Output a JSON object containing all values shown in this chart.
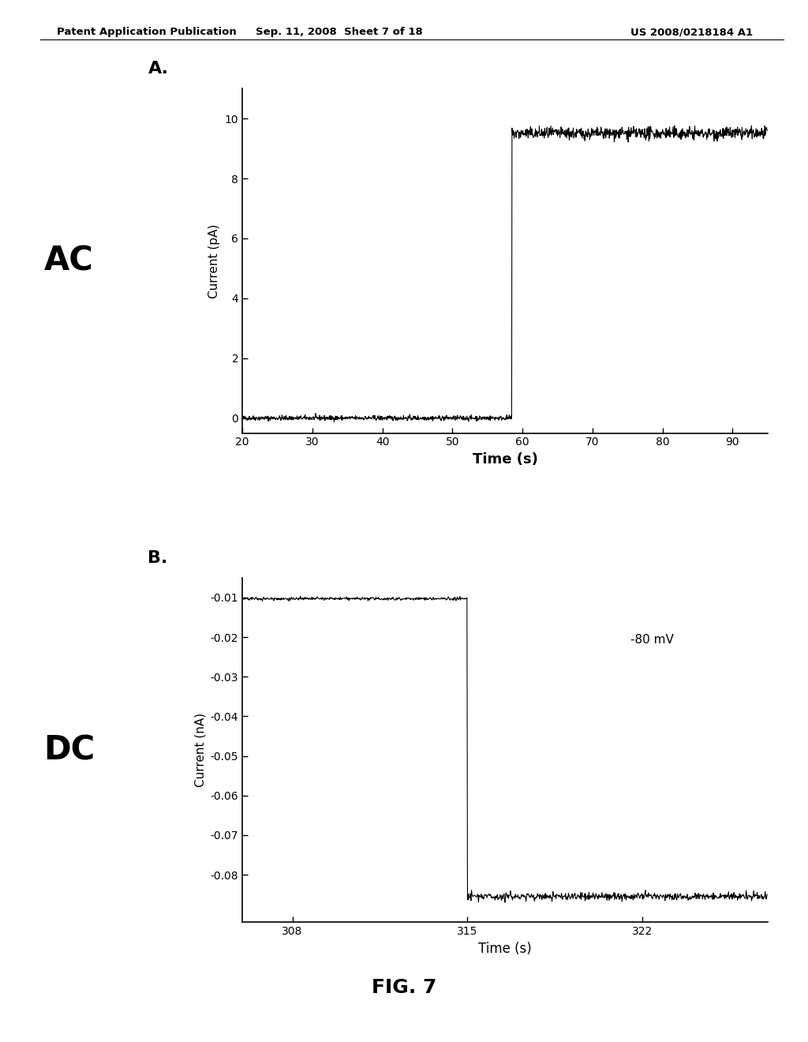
{
  "header_left": "Patent Application Publication",
  "header_mid": "Sep. 11, 2008  Sheet 7 of 18",
  "header_right": "US 2008/0218184 A1",
  "fig_label": "FIG. 7",
  "panel_A_label": "A.",
  "panel_B_label": "B.",
  "AC_label": "AC",
  "DC_label": "DC",
  "annotation_B": "-80 mV",
  "plot_A": {
    "xlabel": "Time (s)",
    "ylabel": "Current (pA)",
    "xlim": [
      20,
      95
    ],
    "ylim": [
      -0.5,
      11
    ],
    "xticks": [
      20,
      30,
      40,
      50,
      60,
      70,
      80,
      90
    ],
    "yticks": [
      0,
      2,
      4,
      6,
      8,
      10
    ],
    "step_time": 58.5,
    "before_value": 0.0,
    "after_value": 9.5,
    "noise_before": 0.04,
    "noise_after": 0.1
  },
  "plot_B": {
    "xlabel": "Time (s)",
    "ylabel": "Current (nA)",
    "xlim": [
      306,
      327
    ],
    "ylim": [
      -0.092,
      -0.005
    ],
    "xticks": [
      308,
      315,
      322
    ],
    "yticks": [
      -0.08,
      -0.07,
      -0.06,
      -0.05,
      -0.04,
      -0.03,
      -0.02,
      -0.01
    ],
    "step_time": 315.0,
    "before_value": -0.0103,
    "after_value": -0.0855,
    "noise_before": 0.0002,
    "noise_after": 0.0005
  },
  "line_color": "#000000",
  "bg_color": "#ffffff",
  "text_color": "#000000"
}
